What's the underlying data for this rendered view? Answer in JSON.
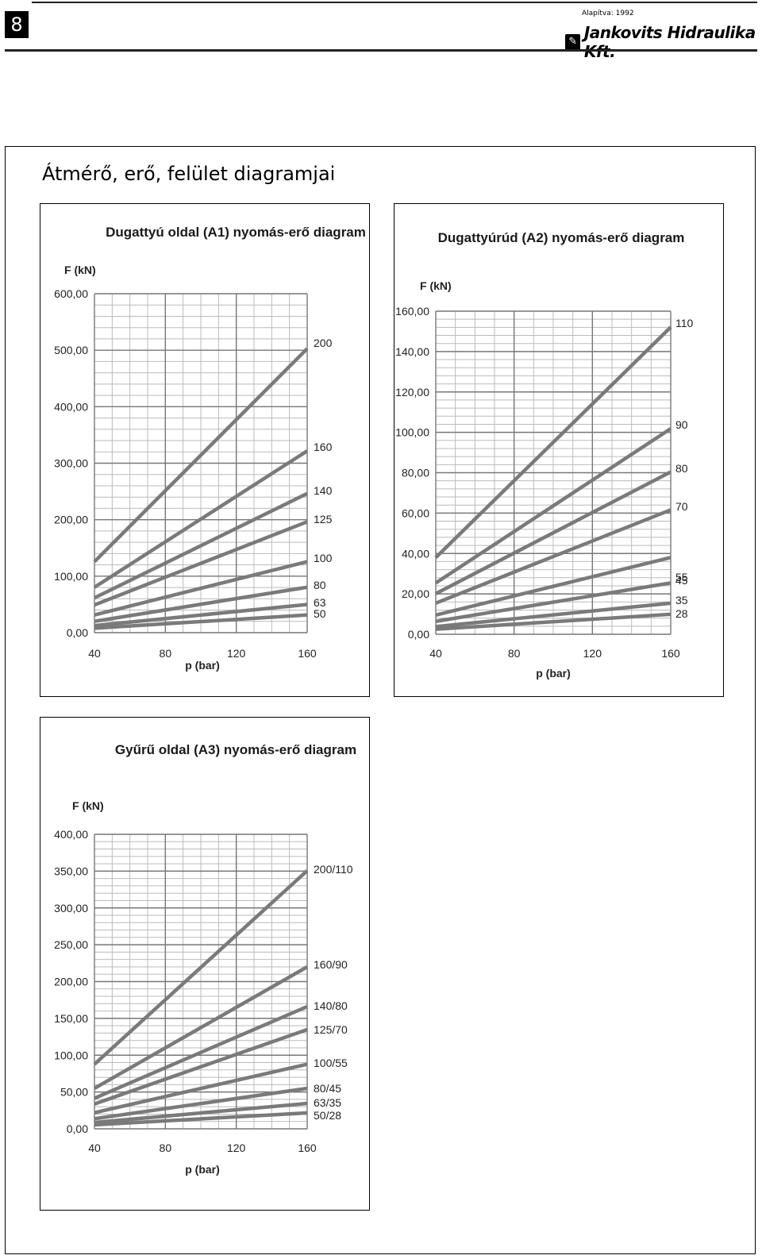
{
  "header": {
    "page_number": "8",
    "founded": "Alapítva: 1992",
    "company": "Jankovits Hidraulika Kft."
  },
  "section_title": "Átmérő, erő, felület diagramjai",
  "chart_data": [
    {
      "type": "line",
      "title": "Dugattyú oldal (A1) nyomás-erő diagram",
      "xlabel": "p (bar)",
      "ylabel": "F (kN)",
      "x": [
        40,
        160
      ],
      "x_ticks": [
        "40",
        "80",
        "120",
        "160"
      ],
      "y_ticks": [
        "0,00",
        "100,00",
        "200,00",
        "300,00",
        "400,00",
        "500,00",
        "600,00"
      ],
      "xlim": [
        40,
        160
      ],
      "ylim": [
        0,
        600
      ],
      "grid": true,
      "series": [
        {
          "name": "200",
          "values": [
            125.7,
            502.7
          ]
        },
        {
          "name": "160",
          "values": [
            80.4,
            321.7
          ]
        },
        {
          "name": "140",
          "values": [
            61.6,
            246.3
          ]
        },
        {
          "name": "125",
          "values": [
            49.1,
            196.3
          ]
        },
        {
          "name": "100",
          "values": [
            31.4,
            125.7
          ]
        },
        {
          "name": "80",
          "values": [
            20.1,
            80.4
          ]
        },
        {
          "name": "63",
          "values": [
            12.5,
            49.9
          ]
        },
        {
          "name": "50",
          "values": [
            7.9,
            31.4
          ]
        }
      ]
    },
    {
      "type": "line",
      "title": "Dugattyúrúd (A2) nyomás-erő diagram",
      "xlabel": "p (bar)",
      "ylabel": "F (kN)",
      "x": [
        40,
        160
      ],
      "x_ticks": [
        "40",
        "80",
        "120",
        "160"
      ],
      "y_ticks": [
        "0,00",
        "20,00",
        "40,00",
        "60,00",
        "80,00",
        "100,00",
        "120,00",
        "140,00",
        "160,00"
      ],
      "xlim": [
        40,
        160
      ],
      "ylim": [
        0,
        160
      ],
      "grid": true,
      "series": [
        {
          "name": "110",
          "values": [
            38.0,
            152.1
          ]
        },
        {
          "name": "90",
          "values": [
            25.4,
            101.8
          ]
        },
        {
          "name": "80",
          "values": [
            20.1,
            80.4
          ]
        },
        {
          "name": "70",
          "values": [
            15.4,
            61.6
          ]
        },
        {
          "name": "55",
          "values": [
            9.5,
            38.0
          ]
        },
        {
          "name": "45",
          "values": [
            6.4,
            25.4
          ]
        },
        {
          "name": "35",
          "values": [
            3.8,
            15.4
          ]
        },
        {
          "name": "28",
          "values": [
            2.5,
            9.9
          ]
        }
      ]
    },
    {
      "type": "line",
      "title": "Gyűrű oldal (A3) nyomás-erő diagram",
      "xlabel": "p (bar)",
      "ylabel": "F (kN)",
      "x": [
        40,
        160
      ],
      "x_ticks": [
        "40",
        "80",
        "120",
        "160"
      ],
      "y_ticks": [
        "0,00",
        "50,00",
        "100,00",
        "150,00",
        "200,00",
        "250,00",
        "300,00",
        "350,00",
        "400,00"
      ],
      "xlim": [
        40,
        160
      ],
      "ylim": [
        0,
        400
      ],
      "grid": true,
      "series": [
        {
          "name": "200/110",
          "values": [
            87.7,
            350.6
          ]
        },
        {
          "name": "160/90",
          "values": [
            55.0,
            219.9
          ]
        },
        {
          "name": "140/80",
          "values": [
            41.5,
            166.0
          ]
        },
        {
          "name": "125/70",
          "values": [
            33.7,
            134.8
          ]
        },
        {
          "name": "100/55",
          "values": [
            21.9,
            87.7
          ]
        },
        {
          "name": "80/45",
          "values": [
            13.7,
            54.9
          ]
        },
        {
          "name": "63/35",
          "values": [
            8.6,
            34.5
          ]
        },
        {
          "name": "50/28",
          "values": [
            5.4,
            21.6
          ]
        }
      ]
    }
  ]
}
